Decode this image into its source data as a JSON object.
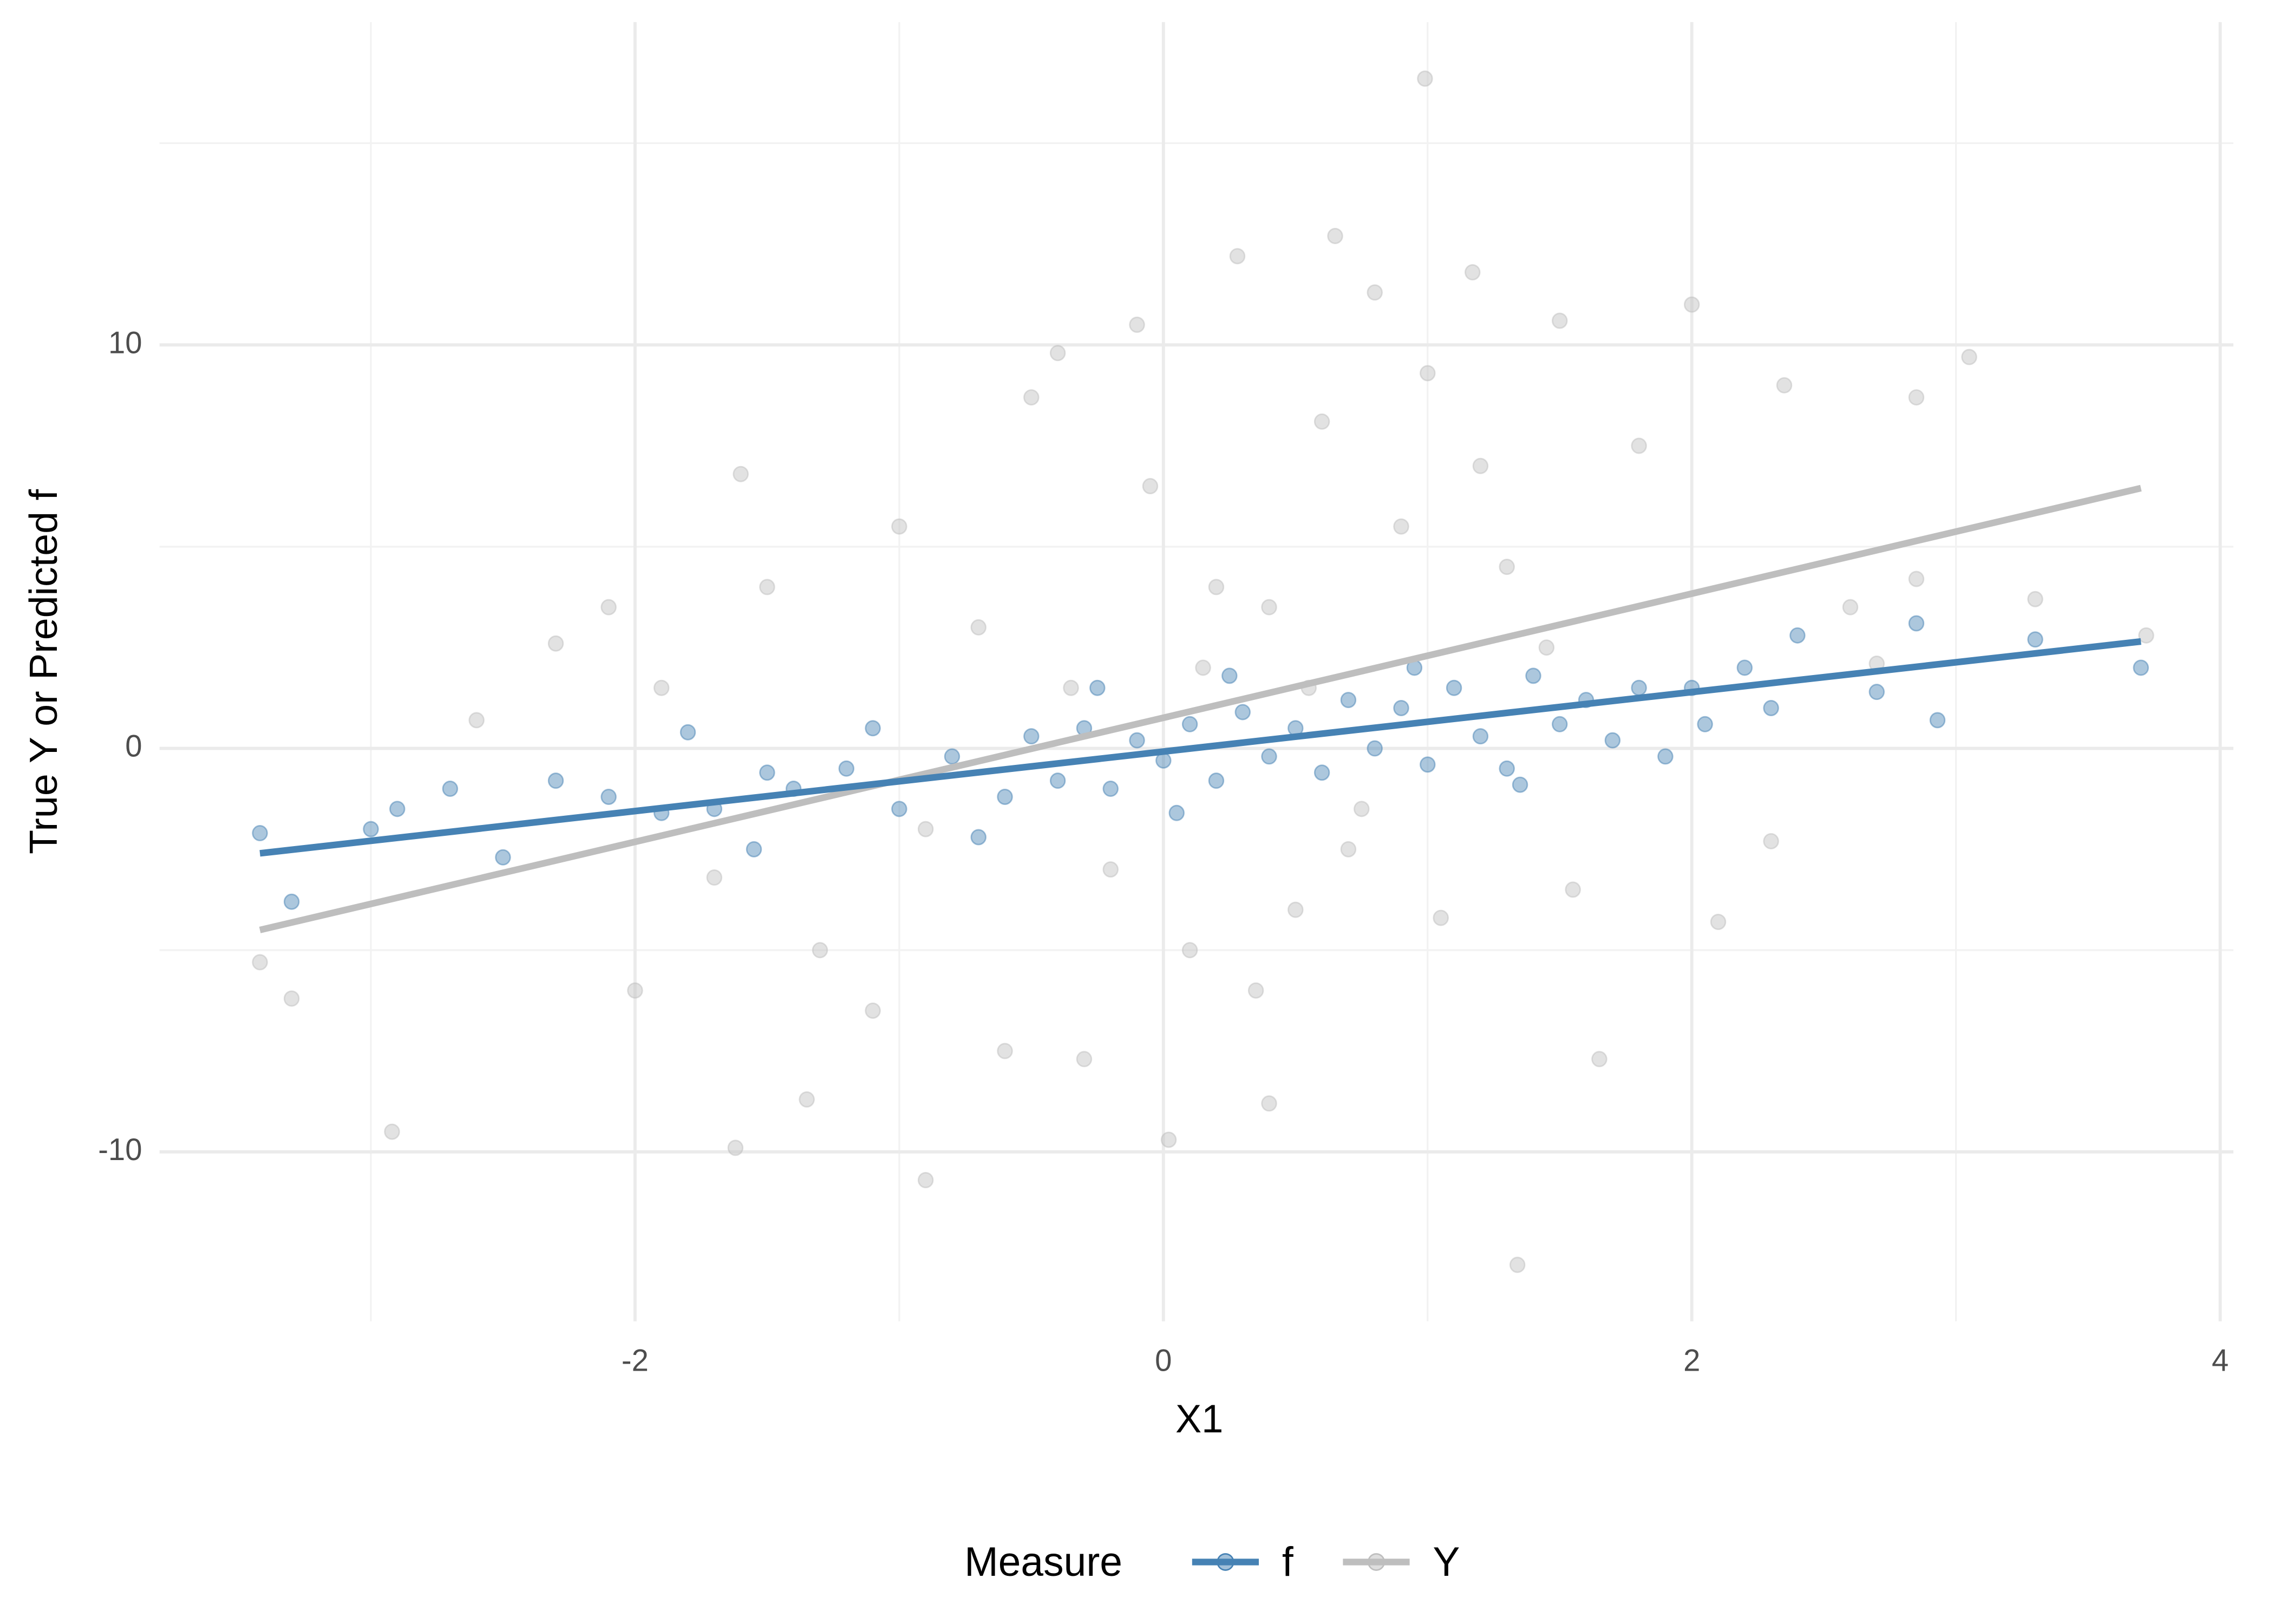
{
  "chart_data": {
    "type": "scatter",
    "x_label": "X1",
    "y_label": "True Y or Predicted f",
    "legend_title": "Measure",
    "legend_position": "bottom",
    "grid": true,
    "xlim": [
      -3.8,
      4.05
    ],
    "ylim": [
      -14.2,
      18
    ],
    "xticks": [
      -2,
      0,
      2,
      4
    ],
    "yticks": [
      -10,
      0,
      10
    ],
    "x_minor_grid": [
      -3,
      -1,
      1,
      3
    ],
    "y_minor_grid": [
      -5,
      5,
      15
    ],
    "series": [
      {
        "name": "Y",
        "color": "#bebebe",
        "x": [
          0.99,
          1.34,
          -0.9,
          -1.62,
          -2.92,
          0.02,
          0.28,
          0.65,
          1.17,
          2.0,
          3.05,
          3.72,
          -3.42,
          -3.3,
          -2.1,
          -1.6,
          -0.4,
          1.5,
          2.35,
          2.85,
          -1.35,
          -0.6,
          0.4,
          1.65,
          2.1,
          -2.3,
          -2.6,
          -0.1,
          0.8,
          -0.3,
          0.6,
          1.0,
          -0.5,
          -1.0,
          -1.3,
          0.1,
          0.5,
          0.9,
          1.2,
          1.8,
          -0.7,
          0.2,
          0.4,
          -0.2,
          0.7,
          1.3,
          -1.7,
          -2.0,
          -1.1,
          2.3,
          1.05,
          -0.05,
          0.35,
          1.55,
          2.6,
          -1.5,
          -0.9,
          0.15,
          0.55,
          -0.35,
          1.45,
          0.75,
          -1.9,
          3.3,
          2.85,
          2.7
        ],
        "values": [
          16.6,
          -12.8,
          -10.7,
          -9.9,
          -9.5,
          -9.7,
          12.2,
          12.7,
          11.8,
          11.0,
          9.7,
          2.8,
          -5.3,
          -6.2,
          3.5,
          6.8,
          9.8,
          10.6,
          9.0,
          8.7,
          -8.7,
          -7.5,
          -8.8,
          -7.7,
          -4.3,
          2.6,
          0.7,
          10.5,
          11.3,
          -7.7,
          8.1,
          9.3,
          8.7,
          5.5,
          -5.0,
          -5.0,
          -4.0,
          5.5,
          7.0,
          7.5,
          3.0,
          4.0,
          3.5,
          -3.0,
          -2.5,
          4.5,
          -3.2,
          -6.0,
          -6.5,
          -2.3,
          -4.2,
          6.5,
          -6.0,
          -3.5,
          3.5,
          4.0,
          -2.0,
          2.0,
          1.5,
          1.5,
          2.5,
          -1.5,
          1.5,
          3.7,
          4.2,
          2.1
        ],
        "fit": {
          "x": [
            -3.42,
            3.7
          ],
          "values": [
            -4.5,
            6.45
          ]
        }
      },
      {
        "name": "f",
        "color": "#4682b4",
        "x": [
          -3.42,
          -3.3,
          -3.0,
          -2.9,
          -2.7,
          -2.5,
          -2.3,
          -2.1,
          -1.9,
          -1.8,
          -1.7,
          -1.55,
          -1.4,
          -1.2,
          -1.1,
          -1.0,
          -0.8,
          -0.6,
          -0.5,
          -0.4,
          -0.3,
          -0.2,
          -0.1,
          0,
          0.1,
          0.2,
          0.3,
          0.4,
          0.5,
          0.6,
          0.7,
          0.8,
          0.9,
          1.0,
          1.1,
          1.2,
          1.3,
          1.35,
          1.4,
          1.5,
          1.6,
          1.7,
          1.8,
          1.9,
          2.0,
          2.05,
          2.2,
          2.3,
          2.4,
          2.7,
          2.85,
          2.93,
          3.3,
          3.7,
          -0.25,
          0.25,
          0.95,
          -0.7,
          0.05,
          -1.5
        ],
        "values": [
          -2.1,
          -3.8,
          -2.0,
          -1.5,
          -1.0,
          -2.7,
          -0.8,
          -1.2,
          -1.6,
          0.4,
          -1.5,
          -2.5,
          -1.0,
          -0.5,
          0.5,
          -1.5,
          -0.2,
          -1.2,
          0.3,
          -0.8,
          0.5,
          -1.0,
          0.2,
          -0.3,
          0.6,
          -0.8,
          0.9,
          -0.2,
          0.5,
          -0.6,
          1.2,
          0.0,
          1.0,
          -0.4,
          1.5,
          0.3,
          -0.5,
          -0.9,
          1.8,
          0.6,
          1.2,
          0.2,
          1.5,
          -0.2,
          1.5,
          0.6,
          2.0,
          1.0,
          2.8,
          1.4,
          3.1,
          0.7,
          2.7,
          2.0,
          1.5,
          1.8,
          2.0,
          -2.2,
          -1.6,
          -0.6
        ],
        "fit": {
          "x": [
            -3.42,
            3.7
          ],
          "values": [
            -2.6,
            2.65
          ]
        }
      }
    ],
    "legend_order": [
      1,
      0
    ]
  }
}
